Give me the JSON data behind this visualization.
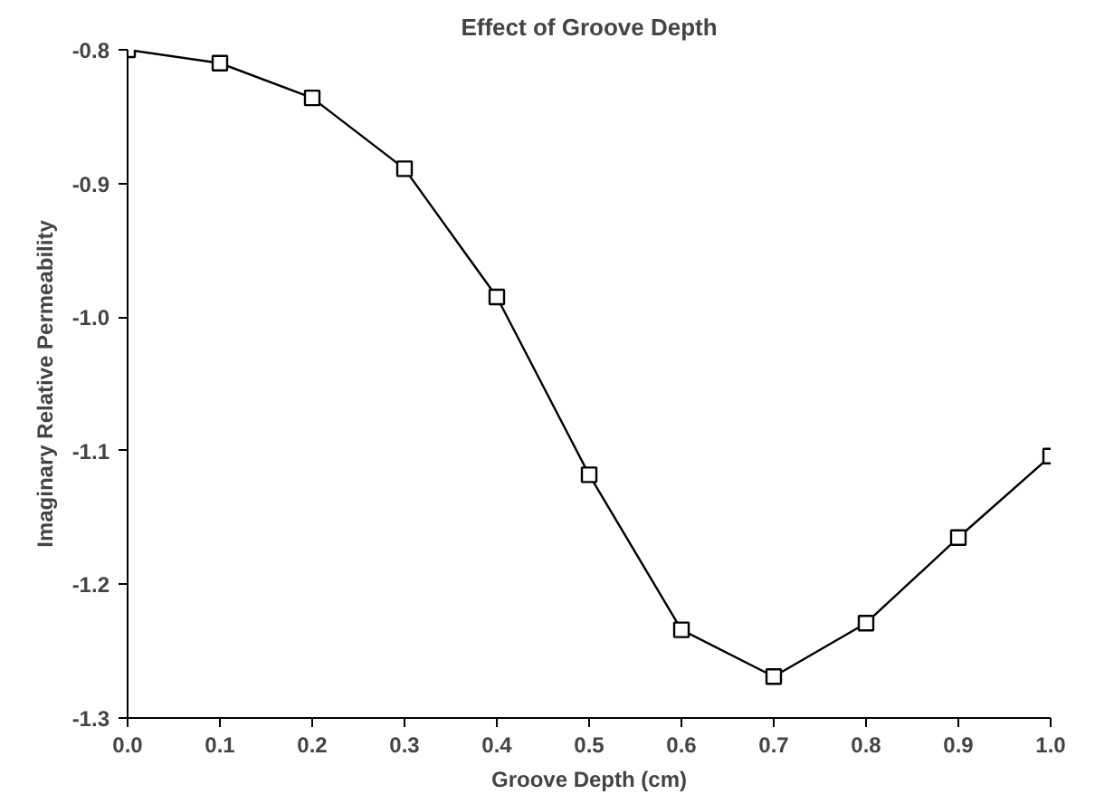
{
  "chart_data": {
    "type": "line",
    "title": "Effect of Groove Depth",
    "xlabel": "Groove Depth (cm)",
    "ylabel": "Imaginary Relative Permeability",
    "x": [
      0.0,
      0.1,
      0.2,
      0.3,
      0.4,
      0.5,
      0.6,
      0.7,
      0.8,
      0.9,
      1.0
    ],
    "series": [
      {
        "color": "#000000",
        "values": [
          -0.8,
          -0.81,
          -0.836,
          -0.889,
          -0.985,
          -1.118,
          -1.234,
          -1.269,
          -1.229,
          -1.165,
          -1.104
        ]
      }
    ],
    "xlim": [
      0,
      1
    ],
    "ylim": [
      -1.3,
      -0.8
    ],
    "xticks": [
      {
        "value": 0,
        "label": "0.0"
      },
      0.1,
      0.2,
      0.3,
      0.4,
      0.5,
      0.6,
      0.7,
      0.8,
      0.9,
      {
        "value": 1,
        "label": "1.0"
      }
    ],
    "yticks": [
      {
        "value": -1.3,
        "label": "-1.3"
      },
      {
        "value": -1.2,
        "label": "-1.2"
      },
      {
        "value": -1.1,
        "label": "-1.1"
      },
      {
        "value": -1.0,
        "label": "-1.0"
      },
      {
        "value": -0.9,
        "label": "-0.9"
      },
      {
        "value": -0.8,
        "label": "-0.8"
      }
    ],
    "marker": "square",
    "line_style": "solid"
  }
}
